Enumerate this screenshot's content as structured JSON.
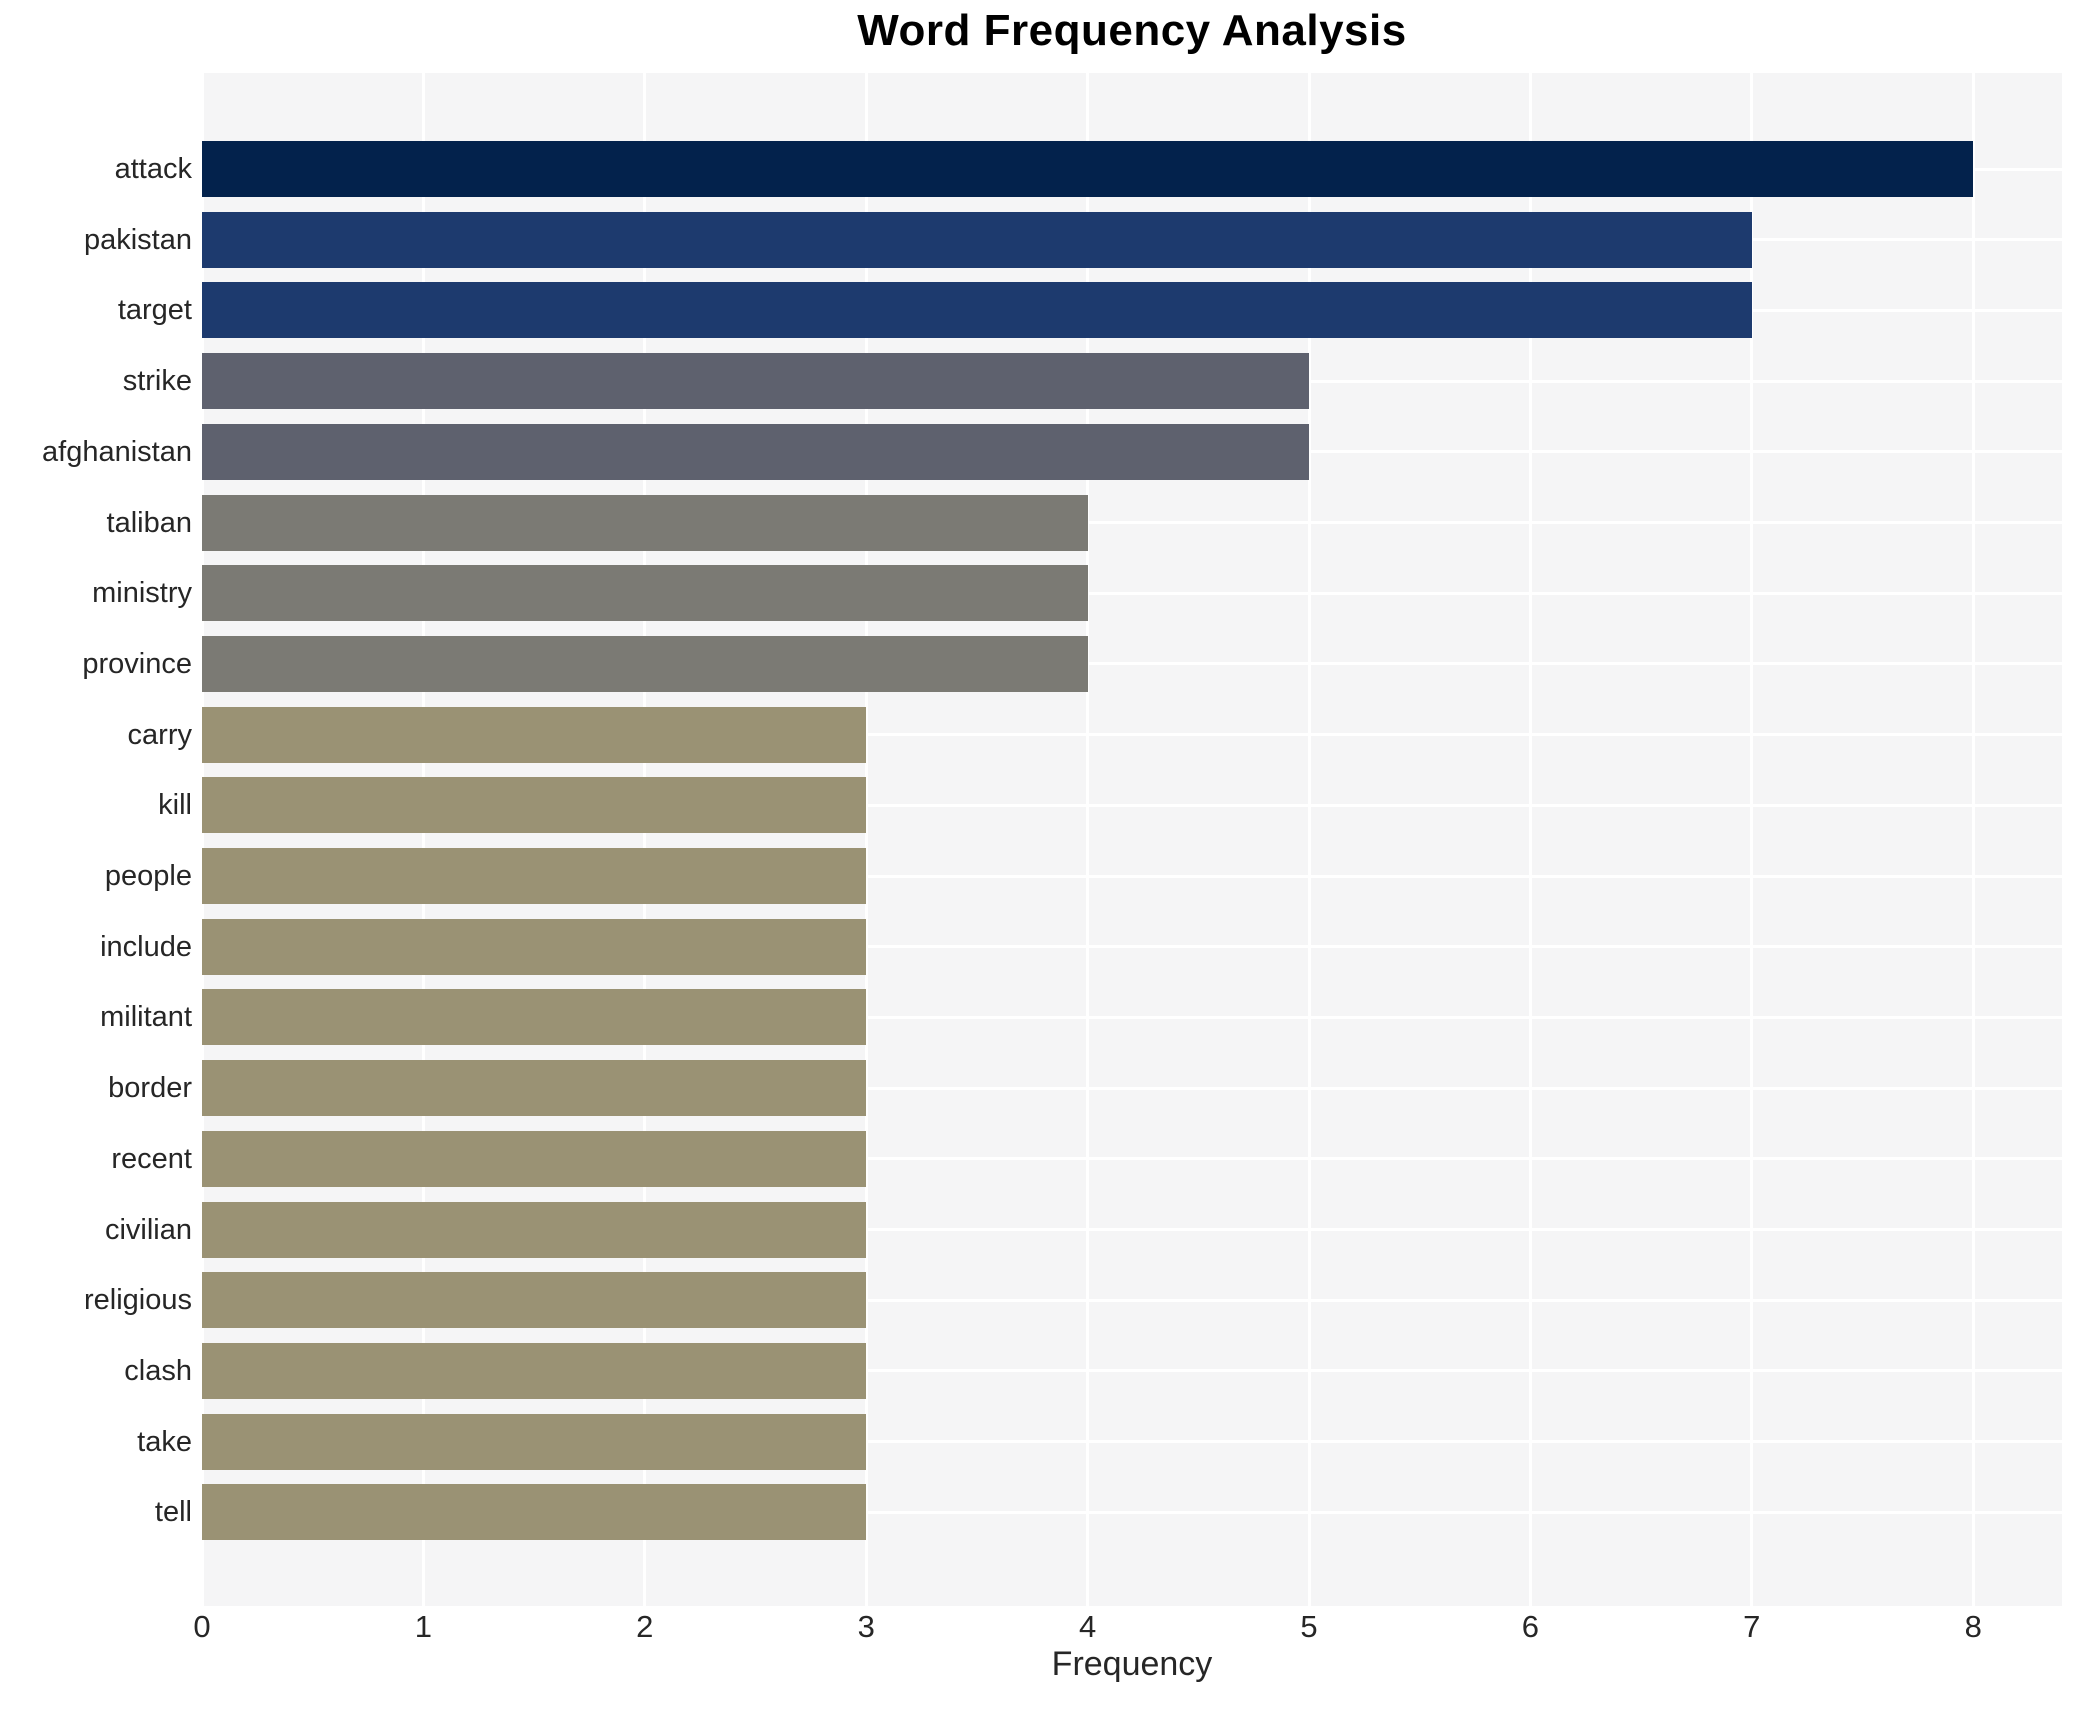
{
  "chart_data": {
    "type": "bar",
    "orientation": "horizontal",
    "title": "Word Frequency Analysis",
    "xlabel": "Frequency",
    "ylabel": "",
    "categories": [
      "attack",
      "pakistan",
      "target",
      "strike",
      "afghanistan",
      "taliban",
      "ministry",
      "province",
      "carry",
      "kill",
      "people",
      "include",
      "militant",
      "border",
      "recent",
      "civilian",
      "religious",
      "clash",
      "take",
      "tell"
    ],
    "values": [
      8,
      7,
      7,
      5,
      5,
      4,
      4,
      4,
      3,
      3,
      3,
      3,
      3,
      3,
      3,
      3,
      3,
      3,
      3,
      3
    ],
    "bar_colors": [
      "#03224c",
      "#1d3a6e",
      "#1d3a6e",
      "#5e616e",
      "#5e616e",
      "#7b7a74",
      "#7b7a74",
      "#7b7a74",
      "#9a9274",
      "#9a9274",
      "#9a9274",
      "#9a9274",
      "#9a9274",
      "#9a9274",
      "#9a9274",
      "#9a9274",
      "#9a9274",
      "#9a9274",
      "#9a9274",
      "#9a9274"
    ],
    "x_ticks": [
      "0",
      "1",
      "2",
      "3",
      "4",
      "5",
      "6",
      "7",
      "8"
    ],
    "xlim": [
      0,
      8.4
    ],
    "grid": true,
    "legend": "none",
    "colors": {
      "plot_background": "#f5f5f6",
      "gridline": "#ffffff",
      "tick_label": "#262626",
      "title": "#000000"
    }
  }
}
